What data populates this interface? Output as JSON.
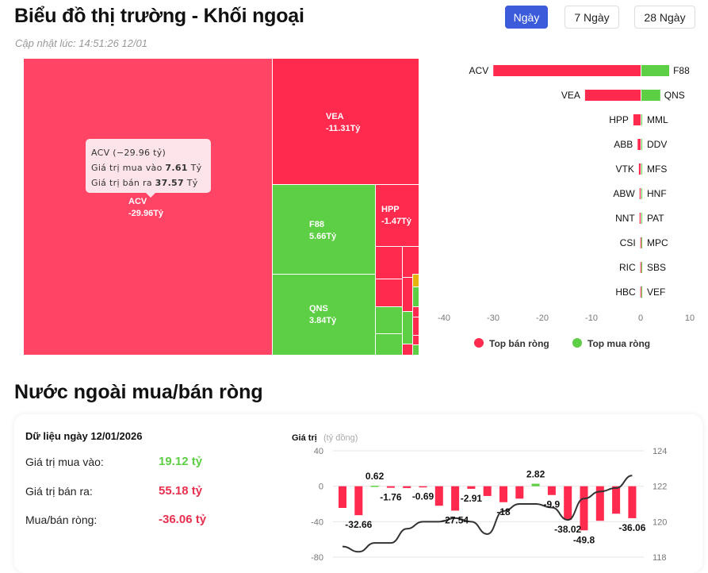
{
  "header": {
    "title": "Biểu đồ thị trường - Khối ngoại",
    "updated": "Cập nhật lúc: 14:51:26 12/01"
  },
  "range_tabs": [
    {
      "label": "Ngày",
      "active": true
    },
    {
      "label": "7 Ngày",
      "active": false
    },
    {
      "label": "28 Ngày",
      "active": false
    }
  ],
  "colors": {
    "sell": "#ff2a4e",
    "buy": "#5ccf44",
    "accent": "#3b5bdb",
    "neutral": "#e5b30c"
  },
  "treemap": {
    "cells": [
      {
        "ticker": "ACV",
        "value": "-29.96Tỷ"
      },
      {
        "ticker": "VEA",
        "value": "-11.31Tỷ"
      },
      {
        "ticker": "F88",
        "value": "5.66Tỷ"
      },
      {
        "ticker": "QNS",
        "value": "3.84Tỷ"
      },
      {
        "ticker": "HPP",
        "value": "-1.47Tỷ"
      }
    ],
    "tooltip": {
      "title": "ACV (−29.96 tỷ)",
      "buy_label": "Giá trị mua vào",
      "buy_value": "7.61",
      "sell_label": "Giá trị bán ra",
      "sell_value": "37.57",
      "unit": "Tỷ"
    }
  },
  "chart_data": [
    {
      "type": "bar",
      "orientation": "horizontal",
      "sell": {
        "name": "Top bán ròng",
        "categories": [
          "ACV",
          "VEA",
          "HPP",
          "ABB",
          "VTK",
          "ABW",
          "NNT",
          "CSI",
          "RIC",
          "HBC"
        ],
        "values": [
          -29.96,
          -11.31,
          -1.47,
          -0.6,
          -0.35,
          -0.2,
          -0.2,
          -0.05,
          -0.05,
          -0.05
        ]
      },
      "buy": {
        "name": "Top mua ròng",
        "categories": [
          "F88",
          "QNS",
          "MML",
          "DDV",
          "MFS",
          "HNF",
          "PAT",
          "MPC",
          "SBS",
          "VEF"
        ],
        "values": [
          5.66,
          3.84,
          0.15,
          0.1,
          0.05,
          0.05,
          0.05,
          0.03,
          0.03,
          0.03
        ]
      },
      "xlim": [
        -40,
        10
      ],
      "xticks": [
        "-40",
        "-30",
        "-20",
        "-10",
        "0",
        "10"
      ],
      "legend": [
        "Top bán ròng",
        "Top mua ròng"
      ],
      "legend_position": "bottom"
    },
    {
      "type": "bar+line",
      "ylabel": "Giá trị",
      "ylabel_unit": "(tỷ đồng)",
      "ylim": [
        -80,
        40
      ],
      "yticks": [
        "40",
        "0",
        "-40",
        "-80"
      ],
      "y2lim": [
        118,
        124
      ],
      "y2ticks": [
        "124",
        "122",
        "120",
        "118"
      ],
      "bars": [
        -24.5,
        -32.66,
        0.62,
        -1.76,
        -2,
        -0.69,
        -22,
        -27.54,
        -2.91,
        -11,
        -18,
        -14,
        2.82,
        -9.9,
        -38.02,
        -49.8,
        -39,
        -31,
        -36.06
      ],
      "bar_labels": [
        "",
        "-32.66",
        "0.62",
        "-1.76",
        "",
        "-0.69",
        "",
        "-27.54",
        "-2.91",
        "",
        "-18",
        "",
        "2.82",
        "-9.9",
        "-38.02",
        "-49.8",
        "",
        "",
        "-36.06"
      ],
      "line": [
        118.6,
        118.3,
        118.8,
        118.8,
        119.6,
        120,
        120,
        120.2,
        120,
        119.3,
        120.6,
        121,
        121,
        120.8,
        120.1,
        121.3,
        121.7,
        121.9,
        122.6
      ],
      "grid": true
    }
  ],
  "net_section": {
    "title": "Nước ngoài mua/bán ròng",
    "date_label": "Dữ liệu ngày 12/01/2026",
    "rows": [
      {
        "label": "Giá trị mua vào:",
        "value": "19.12 tỷ",
        "color": "#5ccf44"
      },
      {
        "label": "Giá trị bán ra:",
        "value": "55.18 tỷ",
        "color": "#e8304f"
      },
      {
        "label": "Mua/bán ròng:",
        "value": "-36.06 tỷ",
        "color": "#e8304f"
      }
    ]
  }
}
